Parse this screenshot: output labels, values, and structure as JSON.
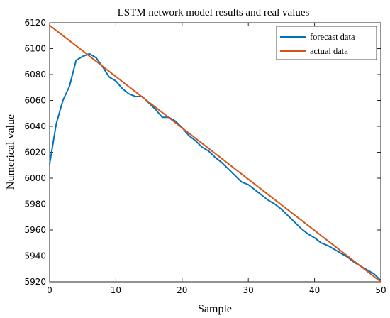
{
  "chart_data": {
    "type": "line",
    "title": "LSTM network model results and real values",
    "xlabel": "Sample",
    "ylabel": "Numerical value",
    "xlim": [
      0,
      50
    ],
    "ylim": [
      5920,
      6120
    ],
    "xticks": [
      0,
      10,
      20,
      30,
      40,
      50
    ],
    "yticks": [
      5920,
      5940,
      5960,
      5980,
      6000,
      6020,
      6040,
      6060,
      6080,
      6100,
      6120
    ],
    "grid": false,
    "legend_position": "top-right",
    "series": [
      {
        "name": "forecast data",
        "color": "#0072BD",
        "x": [
          0,
          1,
          2,
          3,
          4,
          5,
          6,
          7,
          8,
          9,
          10,
          11,
          12,
          13,
          14,
          15,
          16,
          17,
          18,
          19,
          20,
          21,
          22,
          23,
          24,
          25,
          26,
          27,
          28,
          29,
          30,
          31,
          32,
          33,
          34,
          35,
          36,
          37,
          38,
          39,
          40,
          41,
          42,
          43,
          44,
          45,
          46,
          47,
          48,
          49,
          50
        ],
        "y": [
          6011,
          6042,
          6060,
          6071,
          6091,
          6094,
          6096,
          6093,
          6086,
          6078,
          6075,
          6069,
          6065,
          6063,
          6063,
          6058,
          6053,
          6047,
          6047,
          6044,
          6039,
          6033,
          6029,
          6024,
          6021,
          6016,
          6012,
          6007,
          6002,
          5997,
          5995,
          5991,
          5987,
          5983,
          5980,
          5976,
          5971,
          5966,
          5961,
          5957,
          5954,
          5950,
          5948,
          5945,
          5942,
          5939,
          5935,
          5932,
          5929,
          5926,
          5921
        ]
      },
      {
        "name": "actual data",
        "color": "#D95319",
        "x": [
          0,
          50
        ],
        "y": [
          6118,
          5920
        ]
      }
    ]
  }
}
